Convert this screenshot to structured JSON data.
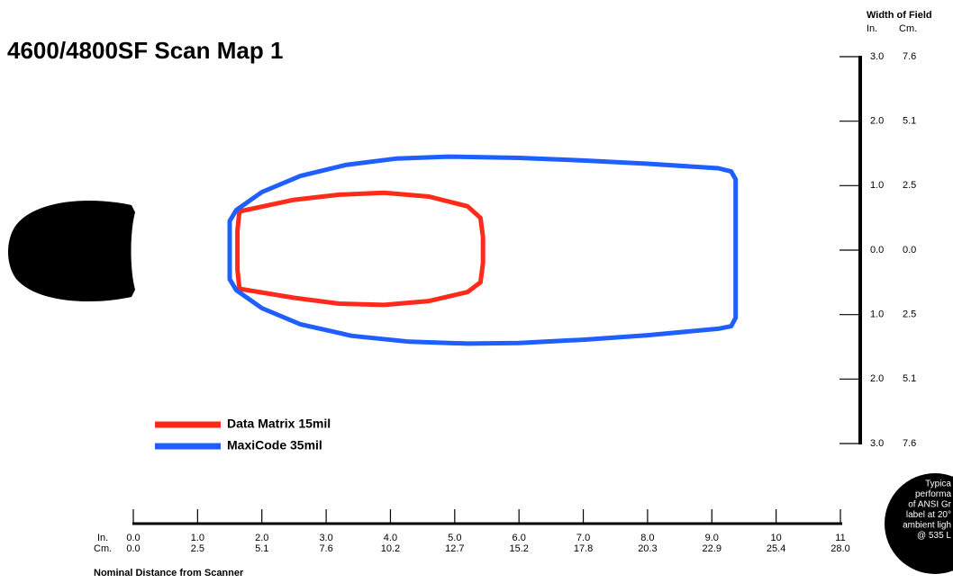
{
  "chart_data": {
    "type": "zone",
    "title": "4600/4800SF Scan Map 1",
    "xlabel": "Nominal Distance from Scanner",
    "x_unit_in": "In.",
    "x_unit_cm": "Cm.",
    "ylabel": "Width of Field",
    "y_unit_in": "In.",
    "y_unit_cm": "Cm.",
    "xlim": [
      0,
      11
    ],
    "ylim": [
      -3,
      3
    ],
    "xticks": [
      {
        "value": 0,
        "label": "0.0"
      },
      {
        "value": 1,
        "label": "1.0"
      },
      {
        "value": 2,
        "label": "2.0"
      },
      {
        "value": 3,
        "label": "3.0"
      },
      {
        "value": 4,
        "label": "4.0"
      },
      {
        "value": 5,
        "label": "5.0"
      },
      {
        "value": 6,
        "label": "6.0"
      },
      {
        "value": 7,
        "label": "7.0"
      },
      {
        "value": 8,
        "label": "8.0"
      },
      {
        "value": 9,
        "label": "9.0"
      },
      10,
      11
    ],
    "xticks_cm": [
      "0.0",
      "2.5",
      "5.1",
      "7.6",
      "10.2",
      "12.7",
      "15.2",
      "17.8",
      "20.3",
      "22.9",
      "25.4",
      "28.0"
    ],
    "yticks": [
      {
        "value": 3,
        "label": "3.0"
      },
      {
        "value": 2,
        "label": "2.0"
      },
      {
        "value": 1,
        "label": "1.0"
      },
      {
        "value": 0,
        "label": "0.0"
      },
      {
        "value": -1,
        "label": "1.0"
      },
      {
        "value": -2,
        "label": "2.0"
      },
      {
        "value": -3,
        "label": "3.0"
      }
    ],
    "yticks_cm": [
      "7.6",
      "5.1",
      "2.5",
      "0.0",
      "2.5",
      "5.1",
      "7.6"
    ],
    "series": [
      {
        "name": "Data Matrix 15mil",
        "color": "#ff2a1a",
        "x": [
          1.65,
          2.5,
          3.2,
          3.9,
          4.6,
          5.2,
          5.4,
          5.44,
          5.44,
          5.4,
          5.2,
          4.6,
          3.9,
          3.2,
          2.5,
          1.65,
          1.62,
          1.62
        ],
        "values": [
          0.6,
          0.78,
          0.86,
          0.89,
          0.83,
          0.68,
          0.5,
          0.2,
          -0.2,
          -0.5,
          -0.65,
          -0.79,
          -0.85,
          -0.83,
          -0.74,
          -0.6,
          -0.3,
          0.3
        ]
      },
      {
        "name": "MaxiCode 35mil",
        "color": "#1f5fff",
        "x": [
          1.5,
          1.6,
          2.0,
          2.6,
          3.3,
          4.1,
          4.9,
          6.0,
          7.0,
          8.0,
          9.1,
          9.3,
          9.37,
          9.37,
          9.3,
          9.1,
          8.0,
          7.0,
          6.0,
          5.2,
          4.3,
          3.4,
          2.6,
          2.0,
          1.6,
          1.5
        ],
        "values": [
          0.45,
          0.62,
          0.9,
          1.15,
          1.32,
          1.42,
          1.45,
          1.43,
          1.39,
          1.34,
          1.27,
          1.22,
          1.1,
          -1.05,
          -1.18,
          -1.22,
          -1.32,
          -1.39,
          -1.44,
          -1.45,
          -1.42,
          -1.33,
          -1.15,
          -0.9,
          -0.62,
          -0.45
        ]
      }
    ],
    "note": [
      "Typica",
      "performa",
      "of ANSI Gr",
      "label at 20°",
      "ambient ligh",
      "@ 535 L"
    ]
  }
}
